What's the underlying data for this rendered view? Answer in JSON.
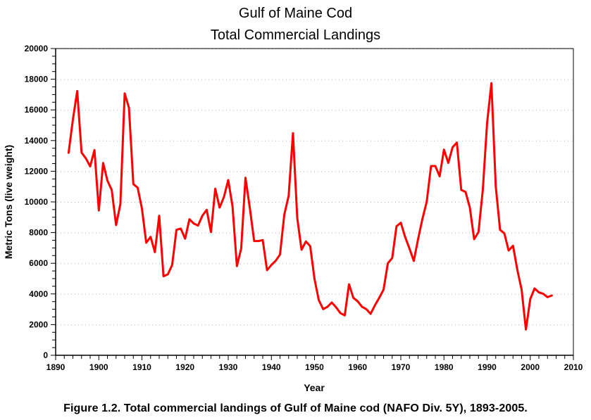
{
  "chart_data": {
    "type": "line",
    "title": "Gulf of Maine Cod",
    "subtitle": "Total Commercial Landings",
    "xlabel": "Year",
    "ylabel": "Metric Tons (live weight)",
    "xlim": [
      1890,
      2010
    ],
    "ylim": [
      0,
      20000
    ],
    "x_ticks": [
      1890,
      1900,
      1910,
      1920,
      1930,
      1940,
      1950,
      1960,
      1970,
      1980,
      1990,
      2000,
      2010
    ],
    "y_ticks": [
      0,
      2000,
      4000,
      6000,
      8000,
      10000,
      12000,
      14000,
      16000,
      18000,
      20000
    ],
    "x_minor_step": 2,
    "y_minor_step": 500,
    "grid": "horizontal-dotted",
    "legend": "none",
    "series": [
      {
        "name": "Total Commercial Landings",
        "color": "#ff0000",
        "x": [
          1893,
          1894,
          1895,
          1896,
          1897,
          1898,
          1899,
          1900,
          1901,
          1902,
          1903,
          1904,
          1905,
          1906,
          1907,
          1908,
          1909,
          1910,
          1911,
          1912,
          1913,
          1914,
          1915,
          1916,
          1917,
          1918,
          1919,
          1920,
          1921,
          1922,
          1923,
          1924,
          1925,
          1926,
          1927,
          1928,
          1929,
          1930,
          1931,
          1932,
          1933,
          1934,
          1935,
          1936,
          1937,
          1938,
          1939,
          1940,
          1941,
          1942,
          1943,
          1944,
          1945,
          1946,
          1947,
          1948,
          1949,
          1950,
          1951,
          1952,
          1953,
          1954,
          1955,
          1956,
          1957,
          1958,
          1959,
          1960,
          1961,
          1962,
          1963,
          1964,
          1965,
          1966,
          1967,
          1968,
          1969,
          1970,
          1971,
          1972,
          1973,
          1974,
          1975,
          1976,
          1977,
          1978,
          1979,
          1980,
          1981,
          1982,
          1983,
          1984,
          1985,
          1986,
          1987,
          1988,
          1989,
          1990,
          1991,
          1992,
          1993,
          1994,
          1995,
          1996,
          1997,
          1998,
          1999,
          2000,
          2001,
          2002,
          2003,
          2004,
          2005
        ],
        "values": [
          13200,
          15370,
          17230,
          13220,
          12840,
          12310,
          13380,
          9440,
          12540,
          11390,
          10780,
          8490,
          9860,
          17080,
          16130,
          11160,
          10930,
          9560,
          7340,
          7720,
          6730,
          9100,
          5150,
          5280,
          5890,
          8180,
          8260,
          7600,
          8870,
          8590,
          8460,
          9100,
          9480,
          8030,
          10860,
          9630,
          10320,
          11420,
          9710,
          5810,
          6960,
          11580,
          9630,
          7450,
          7450,
          7510,
          5550,
          5890,
          6160,
          6570,
          9170,
          10400,
          14480,
          8940,
          6880,
          7420,
          7110,
          4970,
          3590,
          3010,
          3160,
          3440,
          3130,
          2750,
          2600,
          4630,
          3750,
          3520,
          3160,
          3010,
          2700,
          3260,
          3750,
          4280,
          6000,
          6340,
          8410,
          8640,
          7720,
          6960,
          6150,
          7570,
          8870,
          10020,
          12340,
          12340,
          11670,
          13410,
          12540,
          13560,
          13870,
          10780,
          10650,
          9630,
          7570,
          8030,
          10780,
          15140,
          17740,
          11010,
          8180,
          7950,
          6830,
          7140,
          5580,
          4280,
          1680,
          3670,
          4360,
          4100,
          4010,
          3790,
          3900
        ]
      }
    ]
  },
  "caption": "Figure 1.2.  Total commercial landings of Gulf of Maine cod (NAFO Div. 5Y), 1893-2005."
}
